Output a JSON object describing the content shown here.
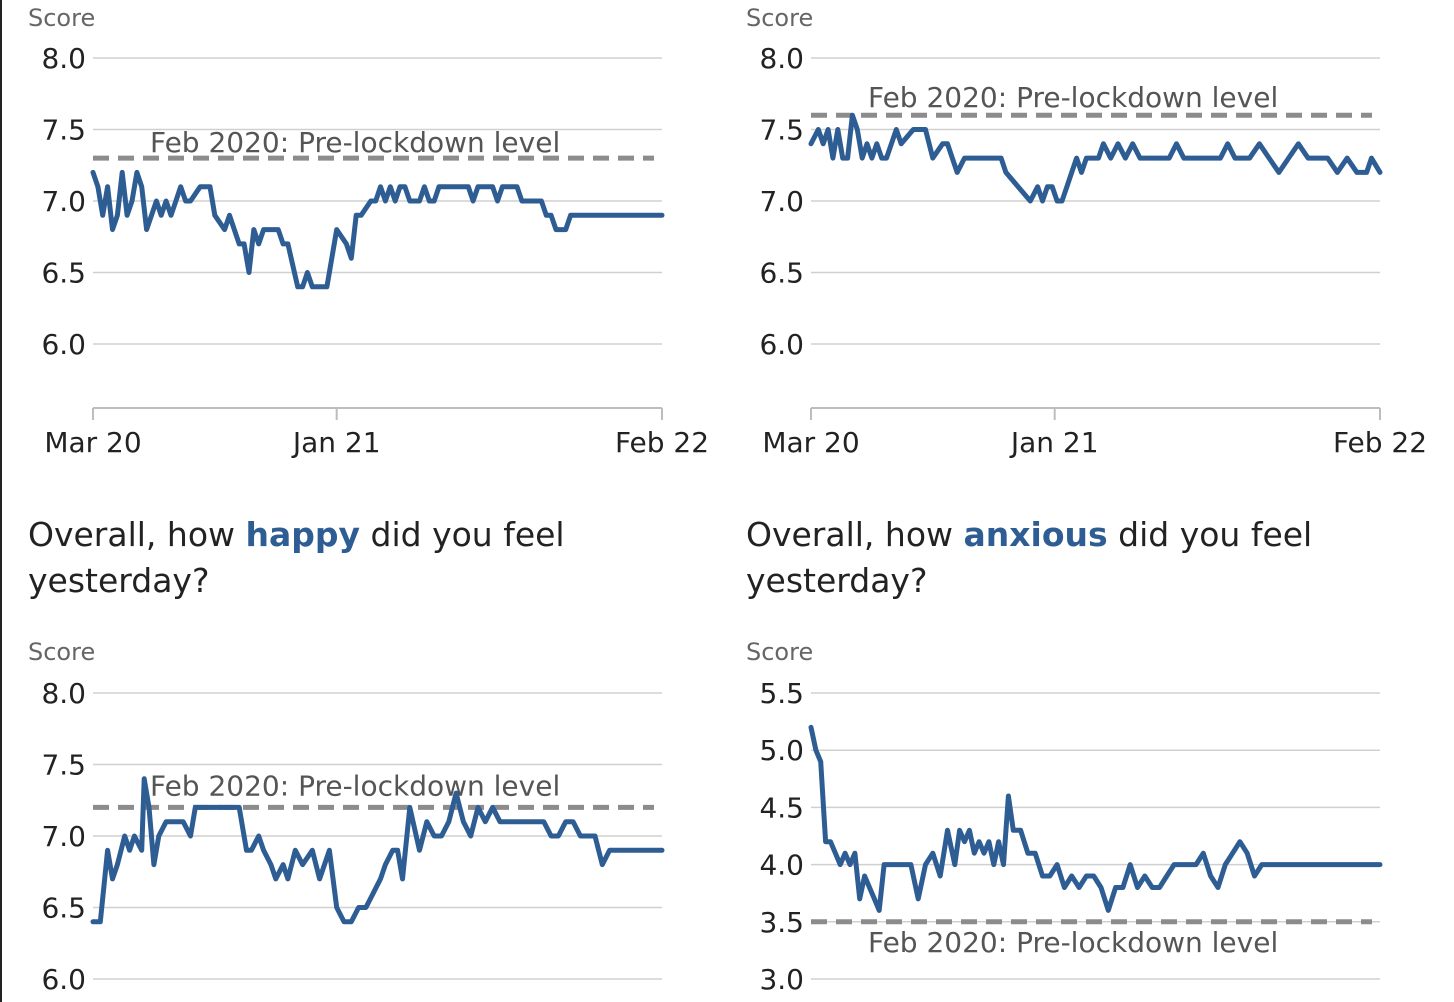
{
  "colors": {
    "series": "#2e5d94",
    "reference": "#8c8c8c",
    "grid": "#d0d0d0",
    "axis": "#bdbdbd",
    "text": "#222222",
    "muted": "#666666"
  },
  "headings": {
    "happy": {
      "pre": "Overall, how ",
      "keyword": "happy",
      "post": " did you feel yesterday?"
    },
    "anxious": {
      "pre": "Overall, how ",
      "keyword": "anxious",
      "post": " did you feel yesterday?"
    }
  },
  "chart_data": [
    {
      "type": "line",
      "ylabel": "Score",
      "yticks": [
        "8.0",
        "7.5",
        "7.0",
        "6.5",
        "6.0"
      ],
      "ylim": [
        5.55,
        8.0
      ],
      "xticks": [
        "Mar 20",
        "Jan 21",
        "Feb 22"
      ],
      "xtick_positions": [
        0,
        10,
        23.35
      ],
      "reference": {
        "value": 7.3,
        "label": "Feb 2020: Pre-lockdown level"
      },
      "series": [
        {
          "x": [
            0,
            0.2,
            0.4,
            0.6,
            0.8,
            1,
            1.2,
            1.4,
            1.6,
            1.8,
            2,
            2.2,
            2.4,
            2.6,
            2.8,
            3,
            3.2,
            3.4,
            3.6,
            3.8,
            4,
            4.4,
            4.6,
            4.8,
            5,
            5.4,
            5.6,
            5.8,
            6,
            6.2,
            6.4,
            6.6,
            6.8,
            7,
            7.2,
            7.4,
            7.6,
            7.8,
            8,
            8.4,
            8.6,
            8.8,
            9,
            9.2,
            9.4,
            9.6,
            10,
            10.4,
            10.6,
            10.8,
            11,
            11.4,
            11.6,
            11.8,
            12,
            12.2,
            12.4,
            12.6,
            12.8,
            13,
            13.2,
            13.4,
            13.6,
            13.8,
            14,
            14.2,
            14.4,
            14.6,
            14.8,
            15,
            15.2,
            15.4,
            15.6,
            15.8,
            16,
            16.4,
            16.6,
            16.8,
            17,
            17.4,
            17.6,
            17.8,
            18,
            18.4,
            18.6,
            18.8,
            19,
            19.4,
            19.6,
            19.8,
            20,
            20.4,
            20.6,
            20.8,
            21,
            21.4,
            21.6,
            21.8,
            22,
            22.2,
            22.4,
            22.6,
            22.8,
            23,
            23.35
          ],
          "y": [
            7.2,
            7.1,
            6.9,
            7.1,
            6.8,
            6.9,
            7.2,
            6.9,
            7.0,
            7.2,
            7.1,
            6.8,
            6.9,
            7.0,
            6.9,
            7.0,
            6.9,
            7.0,
            7.1,
            7.0,
            7.0,
            7.1,
            7.1,
            7.1,
            6.9,
            6.8,
            6.9,
            6.8,
            6.7,
            6.7,
            6.5,
            6.8,
            6.7,
            6.8,
            6.8,
            6.8,
            6.8,
            6.7,
            6.7,
            6.4,
            6.4,
            6.5,
            6.4,
            6.4,
            6.4,
            6.4,
            6.8,
            6.7,
            6.6,
            6.9,
            6.9,
            7.0,
            7.0,
            7.1,
            7.0,
            7.1,
            7.0,
            7.1,
            7.1,
            7.0,
            7.0,
            7.0,
            7.1,
            7.0,
            7.0,
            7.1,
            7.1,
            7.1,
            7.1,
            7.1,
            7.1,
            7.1,
            7.0,
            7.1,
            7.1,
            7.1,
            7.0,
            7.1,
            7.1,
            7.1,
            7.0,
            7.0,
            7.0,
            7.0,
            6.9,
            6.9,
            6.8,
            6.8,
            6.9,
            6.9,
            6.9,
            6.9,
            6.9,
            6.9,
            6.9,
            6.9,
            6.9,
            6.9,
            6.9,
            6.9,
            6.9,
            6.9,
            6.9,
            6.9,
            6.9
          ]
        }
      ]
    },
    {
      "type": "line",
      "ylabel": "Score",
      "yticks": [
        "8.0",
        "7.5",
        "7.0",
        "6.5",
        "6.0"
      ],
      "ylim": [
        5.55,
        8.0
      ],
      "xticks": [
        "Mar 20",
        "Jan 21",
        "Feb 22"
      ],
      "xtick_positions": [
        0,
        10,
        23.35
      ],
      "reference": {
        "value": 7.6,
        "label": "Feb 2020: Pre-lockdown level"
      },
      "series": [
        {
          "x": [
            0,
            0.3,
            0.5,
            0.7,
            0.9,
            1.1,
            1.3,
            1.5,
            1.7,
            1.9,
            2.1,
            2.3,
            2.5,
            2.7,
            2.9,
            3.1,
            3.3,
            3.5,
            3.7,
            4.2,
            4.4,
            4.7,
            5,
            5.4,
            5.6,
            5.8,
            6,
            6.3,
            6.5,
            6.8,
            7,
            7.3,
            7.5,
            7.8,
            8,
            8.5,
            9,
            9.3,
            9.5,
            9.7,
            9.9,
            10.1,
            10.3,
            10.5,
            10.7,
            10.9,
            11.1,
            11.3,
            11.5,
            11.8,
            12,
            12.3,
            12.6,
            12.9,
            13.2,
            13.5,
            13.8,
            14.1,
            14.4,
            14.7,
            15,
            15.3,
            15.6,
            15.9,
            16.2,
            16.5,
            16.8,
            17.1,
            17.4,
            17.7,
            18,
            18.4,
            18.8,
            19.2,
            19.6,
            20,
            20.4,
            20.8,
            21.2,
            21.6,
            22,
            22.4,
            22.8,
            23,
            23.35
          ],
          "y": [
            7.4,
            7.5,
            7.4,
            7.5,
            7.3,
            7.5,
            7.3,
            7.3,
            7.6,
            7.5,
            7.3,
            7.4,
            7.3,
            7.4,
            7.3,
            7.3,
            7.4,
            7.5,
            7.4,
            7.5,
            7.5,
            7.5,
            7.3,
            7.4,
            7.4,
            7.3,
            7.2,
            7.3,
            7.3,
            7.3,
            7.3,
            7.3,
            7.3,
            7.3,
            7.2,
            7.1,
            7.0,
            7.1,
            7.0,
            7.1,
            7.1,
            7.0,
            7.0,
            7.1,
            7.2,
            7.3,
            7.2,
            7.3,
            7.3,
            7.3,
            7.4,
            7.3,
            7.4,
            7.3,
            7.4,
            7.3,
            7.3,
            7.3,
            7.3,
            7.3,
            7.4,
            7.3,
            7.3,
            7.3,
            7.3,
            7.3,
            7.3,
            7.4,
            7.3,
            7.3,
            7.3,
            7.4,
            7.3,
            7.2,
            7.3,
            7.4,
            7.3,
            7.3,
            7.3,
            7.2,
            7.3,
            7.2,
            7.2,
            7.3,
            7.2
          ]
        }
      ]
    },
    {
      "type": "line",
      "ylabel": "Score",
      "yticks": [
        "8.0",
        "7.5",
        "7.0",
        "6.5",
        "6.0"
      ],
      "ylim": [
        6.0,
        8.0
      ],
      "xticks": [],
      "xtick_positions": [],
      "reference": {
        "value": 7.2,
        "label": "Feb 2020: Pre-lockdown level"
      },
      "series": [
        {
          "x": [
            0,
            0.3,
            0.6,
            0.8,
            1,
            1.3,
            1.5,
            1.7,
            2,
            2.1,
            2.3,
            2.5,
            2.7,
            3,
            3.3,
            3.7,
            4,
            4.2,
            4.5,
            5,
            5.4,
            5.8,
            6,
            6.3,
            6.5,
            6.8,
            7,
            7.3,
            7.5,
            7.8,
            8,
            8.3,
            8.6,
            9,
            9.3,
            9.5,
            9.7,
            10,
            10.3,
            10.6,
            10.9,
            11.2,
            11.5,
            11.8,
            12,
            12.3,
            12.5,
            12.7,
            13,
            13.4,
            13.7,
            14,
            14.3,
            14.6,
            14.9,
            15.2,
            15.5,
            15.8,
            16.1,
            16.4,
            16.7,
            17,
            17.3,
            17.6,
            17.9,
            18.2,
            18.5,
            18.8,
            19.1,
            19.4,
            19.7,
            20,
            20.3,
            20.6,
            20.9,
            21.2,
            21.5,
            21.8,
            22.1,
            22.4,
            22.7,
            23,
            23.35
          ],
          "y": [
            6.4,
            6.4,
            6.9,
            6.7,
            6.8,
            7.0,
            6.9,
            7.0,
            6.9,
            7.4,
            7.2,
            6.8,
            7.0,
            7.1,
            7.1,
            7.1,
            7.0,
            7.2,
            7.2,
            7.2,
            7.2,
            7.2,
            7.2,
            6.9,
            6.9,
            7.0,
            6.9,
            6.8,
            6.7,
            6.8,
            6.7,
            6.9,
            6.8,
            6.9,
            6.7,
            6.8,
            6.9,
            6.5,
            6.4,
            6.4,
            6.5,
            6.5,
            6.6,
            6.7,
            6.8,
            6.9,
            6.9,
            6.7,
            7.2,
            6.9,
            7.1,
            7.0,
            7.0,
            7.1,
            7.3,
            7.1,
            7.0,
            7.2,
            7.1,
            7.2,
            7.1,
            7.1,
            7.1,
            7.1,
            7.1,
            7.1,
            7.1,
            7.0,
            7.0,
            7.1,
            7.1,
            7.0,
            7.0,
            7.0,
            6.8,
            6.9,
            6.9,
            6.9,
            6.9,
            6.9,
            6.9,
            6.9,
            6.9
          ],
          "_note": null
        }
      ]
    },
    {
      "type": "line",
      "ylabel": "Score",
      "yticks": [
        "5.5",
        "5.0",
        "4.5",
        "4.0",
        "3.5",
        "3.0"
      ],
      "ylim": [
        3.0,
        5.5
      ],
      "xticks": [],
      "xtick_positions": [],
      "reference": {
        "value": 3.5,
        "label": "Feb 2020: Pre-lockdown level"
      },
      "series": [
        {
          "x": [
            0,
            0.2,
            0.4,
            0.6,
            0.8,
            1,
            1.2,
            1.4,
            1.6,
            1.8,
            2,
            2.2,
            2.4,
            2.6,
            2.8,
            3,
            3.2,
            3.5,
            3.8,
            4.1,
            4.4,
            4.7,
            5,
            5.3,
            5.6,
            5.9,
            6.1,
            6.3,
            6.5,
            6.7,
            6.9,
            7.1,
            7.3,
            7.5,
            7.7,
            7.9,
            8.1,
            8.3,
            8.6,
            8.9,
            9.2,
            9.5,
            9.8,
            10.1,
            10.4,
            10.7,
            11,
            11.3,
            11.6,
            11.9,
            12.2,
            12.5,
            12.8,
            13.1,
            13.4,
            13.7,
            14,
            14.3,
            14.6,
            14.9,
            15.2,
            15.5,
            15.8,
            16.1,
            16.4,
            16.7,
            17,
            17.3,
            17.6,
            17.9,
            18.2,
            18.5,
            18.8,
            19.1,
            19.4,
            19.7,
            20,
            20.3,
            20.6,
            20.9,
            21.2,
            21.5,
            21.8,
            22.1,
            22.4,
            22.7,
            23,
            23.35
          ],
          "y": [
            5.2,
            5.0,
            4.9,
            4.2,
            4.2,
            4.1,
            4.0,
            4.1,
            4.0,
            4.1,
            3.7,
            3.9,
            3.8,
            3.7,
            3.6,
            4.0,
            4.0,
            4.0,
            4.0,
            4.0,
            3.7,
            4.0,
            4.1,
            3.9,
            4.3,
            4.0,
            4.3,
            4.2,
            4.3,
            4.1,
            4.2,
            4.1,
            4.2,
            4.0,
            4.2,
            4.0,
            4.6,
            4.3,
            4.3,
            4.1,
            4.1,
            3.9,
            3.9,
            4.0,
            3.8,
            3.9,
            3.8,
            3.9,
            3.9,
            3.8,
            3.6,
            3.8,
            3.8,
            4.0,
            3.8,
            3.9,
            3.8,
            3.8,
            3.9,
            4.0,
            4.0,
            4.0,
            4.0,
            4.1,
            3.9,
            3.8,
            4.0,
            4.1,
            4.2,
            4.1,
            3.9,
            4.0,
            4.0,
            4.0,
            4.0,
            4.0,
            4.0,
            4.0,
            4.0,
            4.0,
            4.0,
            4.0,
            4.0,
            4.0,
            4.0,
            4.0,
            4.0,
            4.0
          ]
        }
      ]
    }
  ]
}
